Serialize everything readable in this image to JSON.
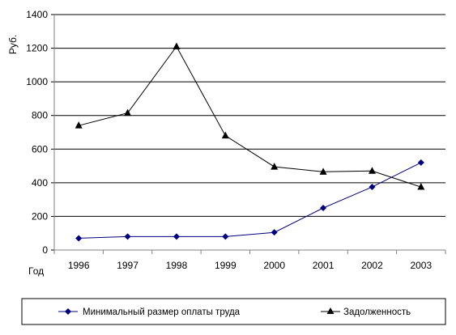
{
  "chart_data": {
    "type": "line",
    "ylabel": "Руб.",
    "xlabel": "Год",
    "categories": [
      "1996",
      "1997",
      "1998",
      "1999",
      "2000",
      "2001",
      "2002",
      "2003"
    ],
    "ylim": [
      0,
      1400
    ],
    "yticks": [
      "0",
      "200",
      "400",
      "600",
      "800",
      "1000",
      "1200",
      "1400"
    ],
    "grid": true,
    "legend_position": "bottom",
    "series": [
      {
        "name": "Минимальный размер оплаты труда",
        "marker": "diamond",
        "color": "#000080",
        "values": [
          70,
          80,
          80,
          80,
          105,
          250,
          375,
          520
        ]
      },
      {
        "name": "Задолженность",
        "marker": "triangle",
        "color": "#000000",
        "values": [
          740,
          815,
          1210,
          680,
          495,
          465,
          470,
          375
        ]
      }
    ]
  }
}
